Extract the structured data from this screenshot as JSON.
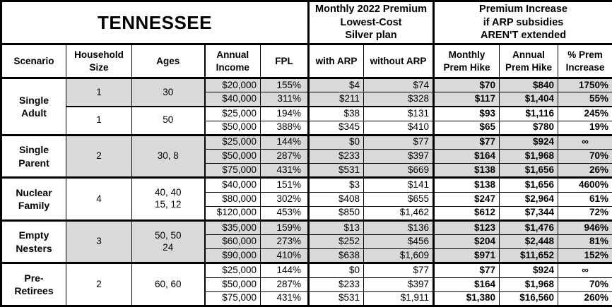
{
  "title": "TENNESSEE",
  "header_groups": {
    "premium": "Monthly 2022 Premium\nLowest-Cost\nSilver plan",
    "increase": "Premium Increase\nif ARP subsidies\nAREN'T extended"
  },
  "columns": {
    "scenario": "Scenario",
    "household": "Household\nSize",
    "ages": "Ages",
    "income": "Annual\nIncome",
    "fpl": "FPL",
    "with_arp": "with ARP",
    "without_arp": "without ARP",
    "monthly_hike": "Monthly\nPrem Hike",
    "annual_hike": "Annual\nPrem Hike",
    "pct_increase": "% Prem\nIncrease"
  },
  "colors": {
    "shaded_row": "#d9d9d9",
    "border": "#000000",
    "background": "#ffffff",
    "text": "#000000"
  },
  "sections": [
    {
      "scenario": "Single\nAdult",
      "groups": [
        {
          "household_size": "1",
          "ages": "30",
          "shaded": true,
          "rows": [
            {
              "income": "$20,000",
              "fpl": "155%",
              "with_arp": "$4",
              "without_arp": "$74",
              "monthly_hike": "$70",
              "annual_hike": "$840",
              "pct_increase": "1750%"
            },
            {
              "income": "$40,000",
              "fpl": "311%",
              "with_arp": "$211",
              "without_arp": "$328",
              "monthly_hike": "$117",
              "annual_hike": "$1,404",
              "pct_increase": "55%"
            }
          ]
        },
        {
          "household_size": "1",
          "ages": "50",
          "shaded": false,
          "rows": [
            {
              "income": "$25,000",
              "fpl": "194%",
              "with_arp": "$38",
              "without_arp": "$131",
              "monthly_hike": "$93",
              "annual_hike": "$1,116",
              "pct_increase": "245%"
            },
            {
              "income": "$50,000",
              "fpl": "388%",
              "with_arp": "$345",
              "without_arp": "$410",
              "monthly_hike": "$65",
              "annual_hike": "$780",
              "pct_increase": "19%"
            }
          ]
        }
      ]
    },
    {
      "scenario": "Single\nParent",
      "groups": [
        {
          "household_size": "2",
          "ages": "30, 8",
          "shaded": true,
          "rows": [
            {
              "income": "$25,000",
              "fpl": "144%",
              "with_arp": "$0",
              "without_arp": "$77",
              "monthly_hike": "$77",
              "annual_hike": "$924",
              "pct_increase": "∞"
            },
            {
              "income": "$50,000",
              "fpl": "287%",
              "with_arp": "$233",
              "without_arp": "$397",
              "monthly_hike": "$164",
              "annual_hike": "$1,968",
              "pct_increase": "70%"
            },
            {
              "income": "$75,000",
              "fpl": "431%",
              "with_arp": "$531",
              "without_arp": "$669",
              "monthly_hike": "$138",
              "annual_hike": "$1,656",
              "pct_increase": "26%"
            }
          ]
        }
      ]
    },
    {
      "scenario": "Nuclear\nFamily",
      "groups": [
        {
          "household_size": "4",
          "ages": "40, 40\n15, 12",
          "shaded": false,
          "rows": [
            {
              "income": "$40,000",
              "fpl": "151%",
              "with_arp": "$3",
              "without_arp": "$141",
              "monthly_hike": "$138",
              "annual_hike": "$1,656",
              "pct_increase": "4600%"
            },
            {
              "income": "$80,000",
              "fpl": "302%",
              "with_arp": "$408",
              "without_arp": "$655",
              "monthly_hike": "$247",
              "annual_hike": "$2,964",
              "pct_increase": "61%"
            },
            {
              "income": "$120,000",
              "fpl": "453%",
              "with_arp": "$850",
              "without_arp": "$1,462",
              "monthly_hike": "$612",
              "annual_hike": "$7,344",
              "pct_increase": "72%"
            }
          ]
        }
      ]
    },
    {
      "scenario": "Empty\nNesters",
      "groups": [
        {
          "household_size": "3",
          "ages": "50, 50\n24",
          "shaded": true,
          "rows": [
            {
              "income": "$35,000",
              "fpl": "159%",
              "with_arp": "$13",
              "without_arp": "$136",
              "monthly_hike": "$123",
              "annual_hike": "$1,476",
              "pct_increase": "946%"
            },
            {
              "income": "$60,000",
              "fpl": "273%",
              "with_arp": "$252",
              "without_arp": "$456",
              "monthly_hike": "$204",
              "annual_hike": "$2,448",
              "pct_increase": "81%"
            },
            {
              "income": "$90,000",
              "fpl": "410%",
              "with_arp": "$638",
              "without_arp": "$1,609",
              "monthly_hike": "$971",
              "annual_hike": "$11,652",
              "pct_increase": "152%"
            }
          ]
        }
      ]
    },
    {
      "scenario": "Pre-\nRetirees",
      "groups": [
        {
          "household_size": "2",
          "ages": "60, 60",
          "shaded": false,
          "rows": [
            {
              "income": "$25,000",
              "fpl": "144%",
              "with_arp": "$0",
              "without_arp": "$77",
              "monthly_hike": "$77",
              "annual_hike": "$924",
              "pct_increase": "∞"
            },
            {
              "income": "$50,000",
              "fpl": "287%",
              "with_arp": "$233",
              "without_arp": "$397",
              "monthly_hike": "$164",
              "annual_hike": "$1,968",
              "pct_increase": "70%"
            },
            {
              "income": "$75,000",
              "fpl": "431%",
              "with_arp": "$531",
              "without_arp": "$1,911",
              "monthly_hike": "$1,380",
              "annual_hike": "$16,560",
              "pct_increase": "260%"
            }
          ]
        }
      ]
    }
  ]
}
